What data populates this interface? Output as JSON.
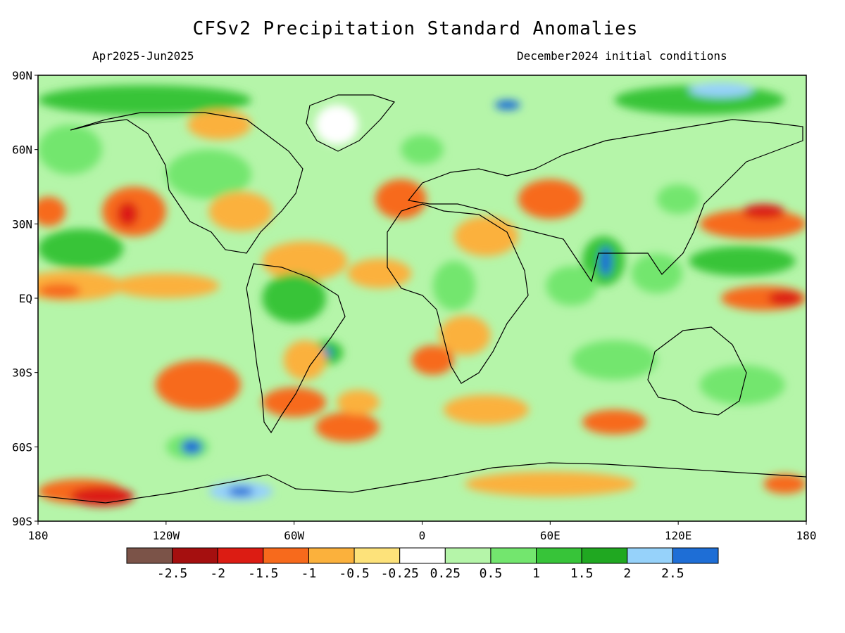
{
  "title": "CFSv2 Precipitation Standard Anomalies",
  "period": "Apr2025-Jun2025",
  "init": "December2024 initial conditions",
  "lat_ticks": [
    {
      "label": "90N",
      "value": 90
    },
    {
      "label": "60N",
      "value": 60
    },
    {
      "label": "30N",
      "value": 30
    },
    {
      "label": "EQ",
      "value": 0
    },
    {
      "label": "30S",
      "value": -30
    },
    {
      "label": "60S",
      "value": -60
    },
    {
      "label": "90S",
      "value": -90
    }
  ],
  "lon_ticks": [
    {
      "label": "180",
      "value": -180
    },
    {
      "label": "120W",
      "value": -120
    },
    {
      "label": "60W",
      "value": -60
    },
    {
      "label": "0",
      "value": 0
    },
    {
      "label": "60E",
      "value": 60
    },
    {
      "label": "120E",
      "value": 120
    },
    {
      "label": "180",
      "value": 180
    }
  ],
  "colorbar": {
    "colors": [
      "#7b5348",
      "#a50f0f",
      "#dc1c13",
      "#f76a1c",
      "#fbb13c",
      "#fde27a",
      "#ffffff",
      "#b5f5a9",
      "#73e66e",
      "#37c439",
      "#20a821",
      "#96d2fa",
      "#1e6ed6"
    ],
    "labels": [
      "-2.5",
      "-2",
      "-1.5",
      "-1",
      "-0.5",
      "-0.25",
      "0.25",
      "0.5",
      "1",
      "1.5",
      "2",
      "2.5"
    ]
  },
  "anomaly_regions": [
    {
      "lon": -165,
      "lat": 5,
      "rlon": 25,
      "rlat": 6,
      "color": "#fbb13c"
    },
    {
      "lon": -120,
      "lat": 5,
      "rlon": 25,
      "rlat": 5,
      "color": "#fbb13c"
    },
    {
      "lon": -170,
      "lat": 3,
      "rlon": 10,
      "rlat": 3,
      "color": "#f76a1c"
    },
    {
      "lon": -135,
      "lat": 35,
      "rlon": 15,
      "rlat": 10,
      "color": "#f76a1c"
    },
    {
      "lon": -138,
      "lat": 34,
      "rlon": 5,
      "rlat": 5,
      "color": "#dc1c13"
    },
    {
      "lon": -175,
      "lat": 35,
      "rlon": 8,
      "rlat": 6,
      "color": "#f76a1c"
    },
    {
      "lon": -160,
      "lat": 20,
      "rlon": 20,
      "rlat": 8,
      "color": "#37c439"
    },
    {
      "lon": -165,
      "lat": 60,
      "rlon": 15,
      "rlat": 10,
      "color": "#73e66e"
    },
    {
      "lon": -130,
      "lat": 80,
      "rlon": 50,
      "rlat": 6,
      "color": "#37c439"
    },
    {
      "lon": -95,
      "lat": 70,
      "rlon": 15,
      "rlat": 6,
      "color": "#fbb13c"
    },
    {
      "lon": -100,
      "lat": 50,
      "rlon": 20,
      "rlat": 10,
      "color": "#73e66e"
    },
    {
      "lon": -85,
      "lat": 35,
      "rlon": 15,
      "rlat": 8,
      "color": "#fbb13c"
    },
    {
      "lon": -55,
      "lat": 15,
      "rlon": 20,
      "rlat": 8,
      "color": "#fbb13c"
    },
    {
      "lon": -60,
      "lat": 0,
      "rlon": 15,
      "rlat": 10,
      "color": "#37c439"
    },
    {
      "lon": -45,
      "lat": -22,
      "rlon": 8,
      "rlat": 5,
      "color": "#37c439"
    },
    {
      "lon": -45,
      "lat": -22,
      "rlon": 3,
      "rlat": 2,
      "color": "#1e6ed6"
    },
    {
      "lon": -55,
      "lat": -25,
      "rlon": 10,
      "rlat": 8,
      "color": "#fbb13c"
    },
    {
      "lon": -105,
      "lat": -35,
      "rlon": 20,
      "rlat": 10,
      "color": "#f76a1c"
    },
    {
      "lon": -60,
      "lat": -42,
      "rlon": 15,
      "rlat": 6,
      "color": "#f76a1c"
    },
    {
      "lon": -35,
      "lat": -52,
      "rlon": 15,
      "rlat": 6,
      "color": "#f76a1c"
    },
    {
      "lon": -30,
      "lat": -42,
      "rlon": 10,
      "rlat": 5,
      "color": "#fbb13c"
    },
    {
      "lon": -110,
      "lat": -60,
      "rlon": 10,
      "rlat": 5,
      "color": "#73e66e"
    },
    {
      "lon": -108,
      "lat": -60,
      "rlon": 5,
      "rlat": 3,
      "color": "#1e6ed6"
    },
    {
      "lon": -160,
      "lat": -78,
      "rlon": 20,
      "rlat": 5,
      "color": "#f76a1c"
    },
    {
      "lon": -150,
      "lat": -80,
      "rlon": 15,
      "rlat": 4,
      "color": "#dc1c13"
    },
    {
      "lon": -85,
      "lat": -78,
      "rlon": 15,
      "rlat": 4,
      "color": "#96d2fa"
    },
    {
      "lon": -85,
      "lat": -78,
      "rlon": 6,
      "rlat": 2,
      "color": "#1e6ed6"
    },
    {
      "lon": -10,
      "lat": 40,
      "rlon": 12,
      "rlat": 8,
      "color": "#f76a1c"
    },
    {
      "lon": -20,
      "lat": 10,
      "rlon": 15,
      "rlat": 6,
      "color": "#fbb13c"
    },
    {
      "lon": 15,
      "lat": 5,
      "rlon": 10,
      "rlat": 10,
      "color": "#73e66e"
    },
    {
      "lon": 30,
      "lat": 25,
      "rlon": 15,
      "rlat": 8,
      "color": "#fbb13c"
    },
    {
      "lon": 20,
      "lat": -15,
      "rlon": 12,
      "rlat": 8,
      "color": "#fbb13c"
    },
    {
      "lon": 5,
      "lat": -25,
      "rlon": 10,
      "rlat": 6,
      "color": "#f76a1c"
    },
    {
      "lon": 30,
      "lat": -45,
      "rlon": 20,
      "rlat": 6,
      "color": "#fbb13c"
    },
    {
      "lon": 60,
      "lat": 40,
      "rlon": 15,
      "rlat": 8,
      "color": "#f76a1c"
    },
    {
      "lon": 85,
      "lat": 15,
      "rlon": 10,
      "rlat": 10,
      "color": "#37c439"
    },
    {
      "lon": 86,
      "lat": 15,
      "rlon": 3,
      "rlat": 6,
      "color": "#1e6ed6"
    },
    {
      "lon": 70,
      "lat": 5,
      "rlon": 12,
      "rlat": 8,
      "color": "#73e66e"
    },
    {
      "lon": 90,
      "lat": -25,
      "rlon": 20,
      "rlat": 8,
      "color": "#73e66e"
    },
    {
      "lon": 90,
      "lat": -50,
      "rlon": 15,
      "rlat": 5,
      "color": "#f76a1c"
    },
    {
      "lon": 110,
      "lat": 10,
      "rlon": 12,
      "rlat": 8,
      "color": "#73e66e"
    },
    {
      "lon": 120,
      "lat": 40,
      "rlon": 10,
      "rlat": 6,
      "color": "#73e66e"
    },
    {
      "lon": 155,
      "lat": 30,
      "rlon": 25,
      "rlat": 6,
      "color": "#f76a1c"
    },
    {
      "lon": 160,
      "lat": 35,
      "rlon": 10,
      "rlat": 3,
      "color": "#dc1c13"
    },
    {
      "lon": 160,
      "lat": 0,
      "rlon": 20,
      "rlat": 5,
      "color": "#f76a1c"
    },
    {
      "lon": 170,
      "lat": 0,
      "rlon": 8,
      "rlat": 3,
      "color": "#dc1c13"
    },
    {
      "lon": 150,
      "lat": 15,
      "rlon": 25,
      "rlat": 6,
      "color": "#37c439"
    },
    {
      "lon": 150,
      "lat": -35,
      "rlon": 20,
      "rlat": 8,
      "color": "#73e66e"
    },
    {
      "lon": 130,
      "lat": 80,
      "rlon": 40,
      "rlat": 6,
      "color": "#37c439"
    },
    {
      "lon": 140,
      "lat": 84,
      "rlon": 15,
      "rlat": 3,
      "color": "#96d2fa"
    },
    {
      "lon": 40,
      "lat": 78,
      "rlon": 6,
      "rlat": 2,
      "color": "#1e6ed6"
    },
    {
      "lon": 60,
      "lat": -75,
      "rlon": 40,
      "rlat": 5,
      "color": "#fbb13c"
    },
    {
      "lon": 170,
      "lat": -75,
      "rlon": 10,
      "rlat": 4,
      "color": "#f76a1c"
    },
    {
      "lon": -40,
      "lat": 70,
      "rlon": 10,
      "rlat": 8,
      "color": "#ffffff"
    },
    {
      "lon": 0,
      "lat": 60,
      "rlon": 10,
      "rlat": 6,
      "color": "#73e66e"
    }
  ]
}
